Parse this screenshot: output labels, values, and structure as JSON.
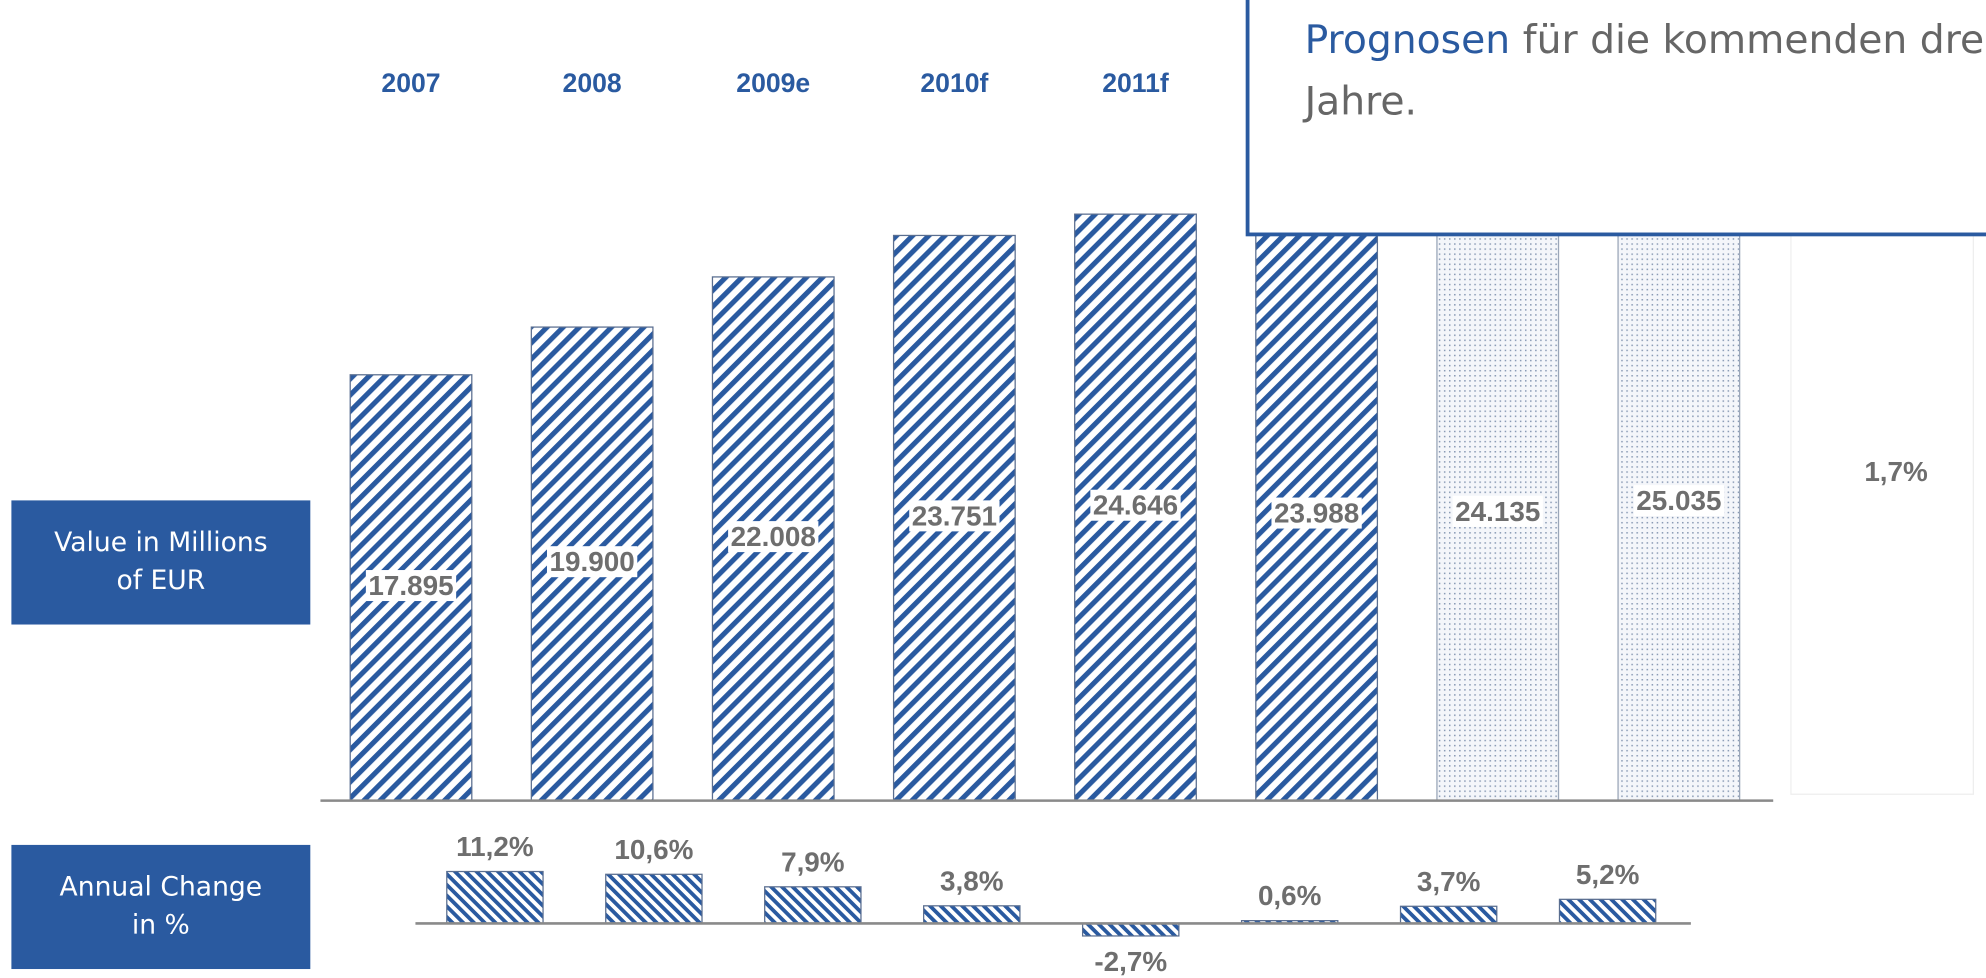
{
  "chart_data": [
    {
      "type": "bar",
      "ylabel": [
        "Value in Millions",
        "of EUR"
      ],
      "categories": [
        "2007",
        "2008",
        "2009e",
        "2010f",
        "2011f",
        null,
        null,
        null
      ],
      "values": [
        17895,
        19900,
        22008,
        23751,
        24646,
        23988,
        24135,
        25035
      ],
      "value_labels": [
        "17.895",
        "19.900",
        "22.008",
        "23.751",
        "24.646",
        "23.988",
        "24.135",
        "25.035"
      ],
      "pattern": [
        "stripes",
        "stripes",
        "stripes",
        "stripes",
        "stripes",
        "stripes",
        "dots",
        "dots"
      ],
      "color": "#2a5aa0",
      "ylim": [
        0,
        30000
      ],
      "annotation": "1,7%"
    },
    {
      "type": "bar",
      "ylabel": [
        "Annual Change",
        "in %"
      ],
      "values": [
        11.2,
        10.6,
        7.9,
        3.8,
        -2.7,
        0.6,
        3.7,
        5.2
      ],
      "value_labels": [
        "11,2%",
        "10,6%",
        "7,9%",
        "3,8%",
        "-2,7%",
        "0,6%",
        "3,7%",
        "5,2%"
      ],
      "color": "#2a5aa0",
      "ylim": [
        -5,
        15
      ]
    }
  ],
  "callout": {
    "highlight": "Prognosen",
    "lines": [
      "für die kommenden drei",
      "Jahre."
    ]
  }
}
